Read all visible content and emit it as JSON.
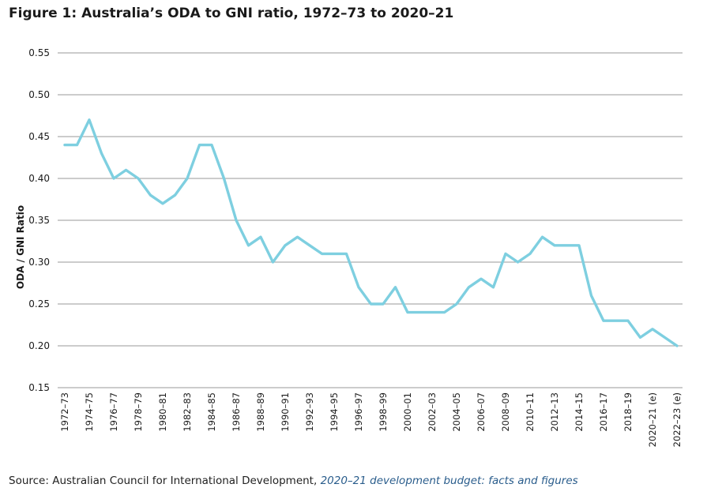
{
  "title": "Figure 1: Australia’s ODA to GNI ratio, 1972–73 to 2020–21",
  "source": {
    "prefix": "Source: Australian Council for International Development, ",
    "link_text": "2020–21 development budget: facts and figures"
  },
  "colors": {
    "line": "#7ecfe0",
    "grid": "#9a9a9a",
    "text": "#1a1a1a",
    "link": "#2a5d8c"
  },
  "chart_data": {
    "type": "line",
    "title": "Figure 1: Australia’s ODA to GNI ratio, 1972–73 to 2020–21",
    "xlabel": "",
    "ylabel": "ODA / GNI Ratio",
    "ylim": [
      0.15,
      0.55
    ],
    "yticks": [
      "0.15",
      "0.20",
      "0.25",
      "0.30",
      "0.35",
      "0.40",
      "0.45",
      "0.50",
      "0.55"
    ],
    "grid": true,
    "x_tick_labels": [
      "1972–73",
      "1974–75",
      "1976–77",
      "1978–79",
      "1980–81",
      "1982–83",
      "1984–85",
      "1986–87",
      "1988–89",
      "1990–91",
      "1992–93",
      "1994–95",
      "1996–97",
      "1998–99",
      "2000–01",
      "2002–03",
      "2004–05",
      "2006–07",
      "2008–09",
      "2010–11",
      "2012–13",
      "2014–15",
      "2016–17",
      "2018–19",
      "2020–21 (e)",
      "2022–23 (e)"
    ],
    "series": [
      {
        "name": "ODA / GNI Ratio",
        "values": [
          0.44,
          0.44,
          0.47,
          0.43,
          0.4,
          0.41,
          0.4,
          0.38,
          0.37,
          0.38,
          0.4,
          0.44,
          0.44,
          0.4,
          0.35,
          0.32,
          0.33,
          0.3,
          0.32,
          0.33,
          0.32,
          0.31,
          0.31,
          0.31,
          0.27,
          0.25,
          0.25,
          0.27,
          0.24,
          0.24,
          0.24,
          0.24,
          0.25,
          0.27,
          0.28,
          0.27,
          0.31,
          0.3,
          0.31,
          0.33,
          0.32,
          0.32,
          0.32,
          0.26,
          0.23,
          0.23,
          0.23,
          0.21,
          0.22,
          0.21,
          0.2
        ]
      }
    ]
  }
}
